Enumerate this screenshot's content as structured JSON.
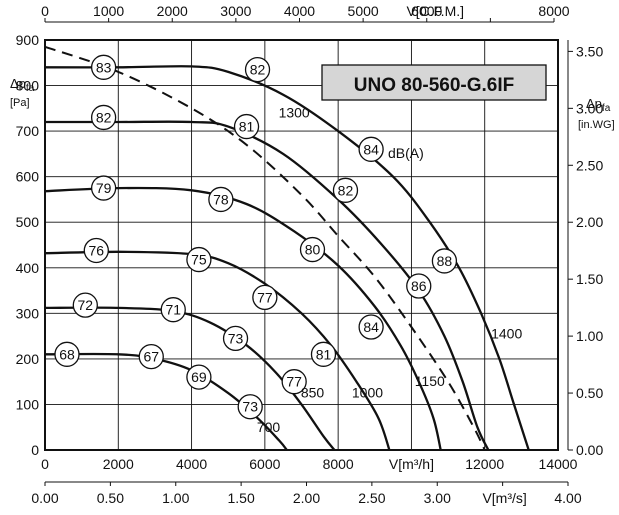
{
  "chart_data": {
    "type": "line",
    "title": "UNO 80-560-G.6IF",
    "axes": {
      "x_m3h": {
        "label": "V[m³/h]",
        "range": [
          0,
          14000
        ],
        "ticks": [
          "0",
          "2000",
          "4000",
          "6000",
          "8000",
          "",
          "12000",
          "14000"
        ]
      },
      "x_cfm": {
        "label": "V[C.F.M.]",
        "range": [
          0,
          8000
        ],
        "ticks": [
          "0",
          "1000",
          "2000",
          "3000",
          "4000",
          "5000",
          "6000",
          "",
          "8000"
        ]
      },
      "x_m3s": {
        "label": "V[m³/s]",
        "range": [
          0,
          4.0
        ],
        "ticks": [
          "0.00",
          "0.50",
          "1.00",
          "1.50",
          "2.00",
          "2.50",
          "3.00",
          "",
          "4.00"
        ]
      },
      "y_pa": {
        "label_main": "Δp",
        "label_sub": "fa",
        "unit": "[Pa]",
        "range": [
          0,
          900
        ],
        "ticks": [
          "0",
          "100",
          "200",
          "300",
          "400",
          "500",
          "600",
          "700",
          "800",
          "900"
        ]
      },
      "y_inwg": {
        "label_main": "Δp",
        "label_sub": "fa",
        "unit": "[in.WG]",
        "range": [
          0,
          3.6
        ],
        "ticks": [
          "0.00",
          "0.50",
          "1.00",
          "1.50",
          "2.00",
          "2.50",
          "3.00",
          "3.50"
        ]
      }
    },
    "grid": true,
    "sound_unit_label": "dB(A)",
    "series": [
      {
        "name": "1400",
        "points": [
          [
            0,
            840
          ],
          [
            2000,
            840
          ],
          [
            4000,
            842
          ],
          [
            5000,
            830
          ],
          [
            6500,
            780
          ],
          [
            8000,
            700
          ],
          [
            9500,
            600
          ],
          [
            10500,
            500
          ],
          [
            11300,
            400
          ],
          [
            11900,
            300
          ],
          [
            12400,
            200
          ],
          [
            12800,
            100
          ],
          [
            13200,
            0
          ]
        ]
      },
      {
        "name": "1300",
        "points": [
          [
            0,
            720
          ],
          [
            2000,
            720
          ],
          [
            4000,
            720
          ],
          [
            5000,
            710
          ],
          [
            6500,
            650
          ],
          [
            8000,
            550
          ],
          [
            9200,
            450
          ],
          [
            10200,
            350
          ],
          [
            10900,
            250
          ],
          [
            11400,
            150
          ],
          [
            11800,
            50
          ],
          [
            12100,
            0
          ]
        ]
      },
      {
        "name": "1150",
        "points": [
          [
            0,
            568
          ],
          [
            2000,
            575
          ],
          [
            4000,
            570
          ],
          [
            5500,
            540
          ],
          [
            6800,
            480
          ],
          [
            8000,
            405
          ],
          [
            9000,
            315
          ],
          [
            9700,
            230
          ],
          [
            10200,
            150
          ],
          [
            10600,
            70
          ],
          [
            10800,
            0
          ]
        ]
      },
      {
        "name": "1000",
        "points": [
          [
            0,
            432
          ],
          [
            2000,
            435
          ],
          [
            4000,
            430
          ],
          [
            5000,
            410
          ],
          [
            6000,
            365
          ],
          [
            7000,
            300
          ],
          [
            7800,
            230
          ],
          [
            8500,
            150
          ],
          [
            9100,
            70
          ],
          [
            9400,
            0
          ]
        ]
      },
      {
        "name": "850",
        "points": [
          [
            0,
            312
          ],
          [
            2000,
            312
          ],
          [
            3500,
            305
          ],
          [
            4500,
            280
          ],
          [
            5500,
            230
          ],
          [
            6300,
            170
          ],
          [
            7000,
            100
          ],
          [
            7600,
            30
          ],
          [
            7900,
            0
          ]
        ]
      },
      {
        "name": "700",
        "points": [
          [
            0,
            210
          ],
          [
            2000,
            210
          ],
          [
            3000,
            200
          ],
          [
            4000,
            175
          ],
          [
            5000,
            125
          ],
          [
            5800,
            70
          ],
          [
            6400,
            20
          ],
          [
            6600,
            0
          ]
        ]
      }
    ],
    "dashed_curve": [
      [
        0,
        885
      ],
      [
        2000,
        830
      ],
      [
        4000,
        750
      ],
      [
        5500,
        670
      ],
      [
        7000,
        560
      ],
      [
        8000,
        470
      ],
      [
        9000,
        380
      ],
      [
        10000,
        270
      ],
      [
        11000,
        150
      ],
      [
        11700,
        50
      ],
      [
        12000,
        0
      ]
    ],
    "sound_levels": [
      {
        "db": "83",
        "x": 1600,
        "y": 840
      },
      {
        "db": "82",
        "x": 5800,
        "y": 835
      },
      {
        "db": "84",
        "x": 8900,
        "y": 660
      },
      {
        "db": "88",
        "x": 10900,
        "y": 415
      },
      {
        "db": "82",
        "x": 1600,
        "y": 730
      },
      {
        "db": "81",
        "x": 5500,
        "y": 710
      },
      {
        "db": "82",
        "x": 8200,
        "y": 570
      },
      {
        "db": "86",
        "x": 10200,
        "y": 360
      },
      {
        "db": "79",
        "x": 1600,
        "y": 575
      },
      {
        "db": "78",
        "x": 4800,
        "y": 550
      },
      {
        "db": "80",
        "x": 7300,
        "y": 440
      },
      {
        "db": "84",
        "x": 8900,
        "y": 270
      },
      {
        "db": "76",
        "x": 1400,
        "y": 438
      },
      {
        "db": "75",
        "x": 4200,
        "y": 418
      },
      {
        "db": "77",
        "x": 6000,
        "y": 335
      },
      {
        "db": "81",
        "x": 7600,
        "y": 210
      },
      {
        "db": "72",
        "x": 1100,
        "y": 318
      },
      {
        "db": "71",
        "x": 3500,
        "y": 308
      },
      {
        "db": "73",
        "x": 5200,
        "y": 245
      },
      {
        "db": "77",
        "x": 6800,
        "y": 150
      },
      {
        "db": "68",
        "x": 600,
        "y": 210
      },
      {
        "db": "67",
        "x": 2900,
        "y": 205
      },
      {
        "db": "69",
        "x": 4200,
        "y": 160
      },
      {
        "db": "73",
        "x": 5600,
        "y": 95
      }
    ],
    "speed_labels": [
      {
        "text": "1300",
        "x": 6800,
        "y": 730
      },
      {
        "text": "1400",
        "x": 12600,
        "y": 245
      },
      {
        "text": "1150",
        "x": 10500,
        "y": 140
      },
      {
        "text": "1000",
        "x": 8800,
        "y": 115
      },
      {
        "text": "850",
        "x": 7300,
        "y": 115
      },
      {
        "text": "700",
        "x": 6100,
        "y": 40
      }
    ]
  }
}
